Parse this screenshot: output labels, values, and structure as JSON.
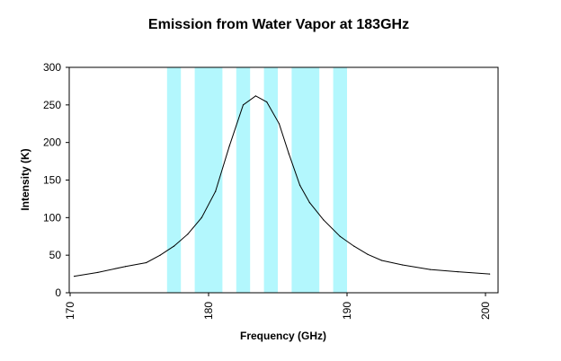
{
  "chart_data": {
    "type": "line",
    "title": "Emission from Water Vapor at 183GHz",
    "xlabel": "Frequency (GHz)",
    "ylabel": "Intensity (K)",
    "xlim": [
      170,
      200
    ],
    "ylim": [
      0,
      300
    ],
    "x_ticks": [
      170,
      180,
      190,
      200
    ],
    "y_ticks": [
      0,
      50,
      100,
      150,
      200,
      250,
      300
    ],
    "grid": false,
    "legend": "none",
    "series": [
      {
        "x": [
          170.3,
          172.0,
          174.0,
          175.5,
          176.5,
          177.5,
          178.5,
          179.5,
          180.5,
          181.5,
          182.5,
          183.4,
          184.2,
          185.1,
          185.8,
          186.6,
          187.3,
          188.3,
          189.5,
          190.5,
          191.5,
          192.5,
          194.0,
          196.0,
          198.0,
          200.3
        ],
        "y": [
          22,
          27,
          35,
          40,
          50,
          62,
          78,
          100,
          135,
          195,
          250,
          262,
          254,
          225,
          185,
          143,
          120,
          97,
          75,
          62,
          51,
          43,
          37,
          31,
          28,
          25
        ],
        "color": "#000000"
      }
    ],
    "bands": [
      {
        "from": 177.0,
        "to": 178.0
      },
      {
        "from": 179.0,
        "to": 181.0
      },
      {
        "from": 182.0,
        "to": 183.0
      },
      {
        "from": 184.0,
        "to": 185.0
      },
      {
        "from": 186.0,
        "to": 188.0
      },
      {
        "from": 189.0,
        "to": 190.0
      }
    ],
    "band_color": "#b3f7fd",
    "line_color": "#000000"
  }
}
